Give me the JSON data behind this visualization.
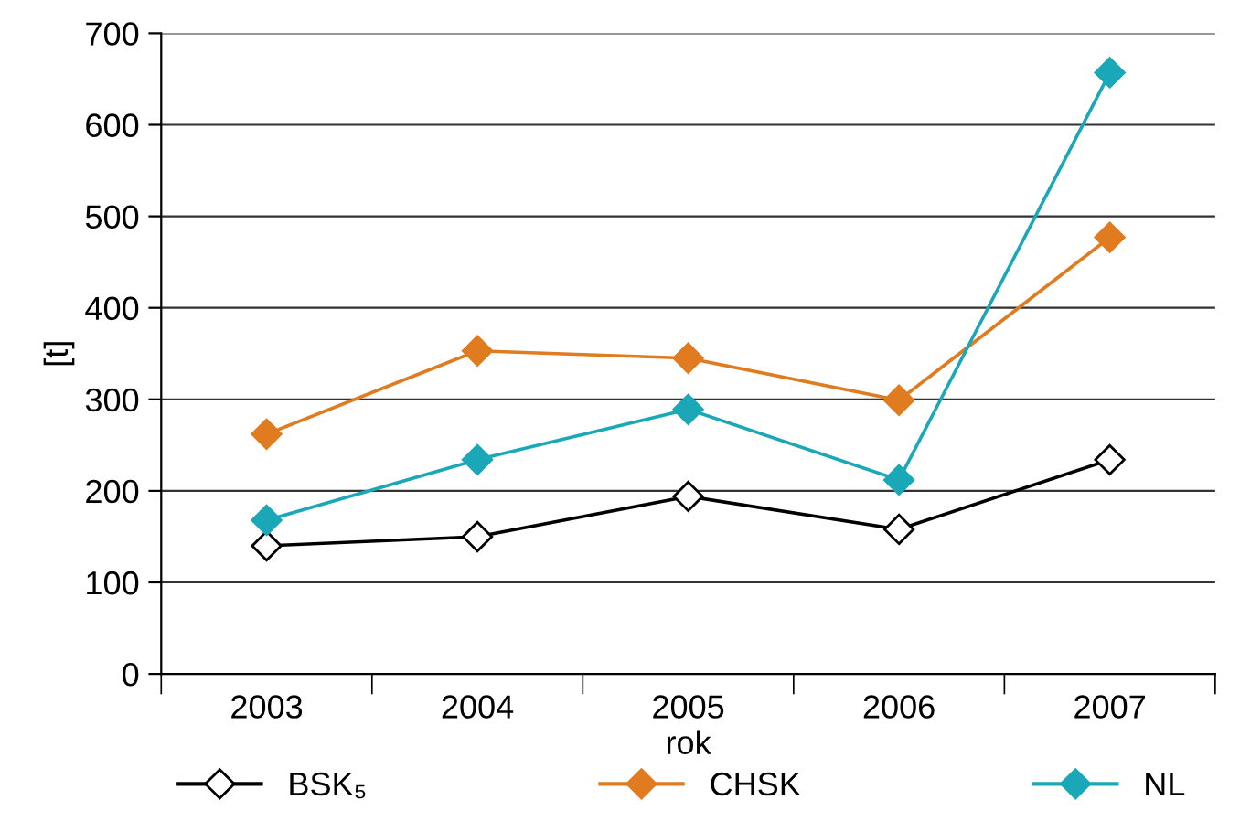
{
  "chart_data": {
    "type": "line",
    "xlabel": "rok",
    "ylabel": "[t]",
    "categories": [
      "2003",
      "2004",
      "2005",
      "2006",
      "2007"
    ],
    "series": [
      {
        "name": "BSK₅",
        "color": "#000000",
        "values": [
          140,
          150,
          194,
          158,
          234
        ]
      },
      {
        "name": "CHSK",
        "color": "#e07b1f",
        "values": [
          262,
          353,
          345,
          299,
          477
        ]
      },
      {
        "name": "NL",
        "color": "#1aa8b8",
        "values": [
          168,
          234,
          289,
          212,
          657
        ]
      }
    ],
    "ylim": [
      0,
      700
    ],
    "yticks": [
      0,
      100,
      200,
      300,
      400,
      500,
      600,
      700
    ],
    "grid": "y",
    "legend": "bottom",
    "marker": "diamond",
    "line_style": "solid"
  }
}
